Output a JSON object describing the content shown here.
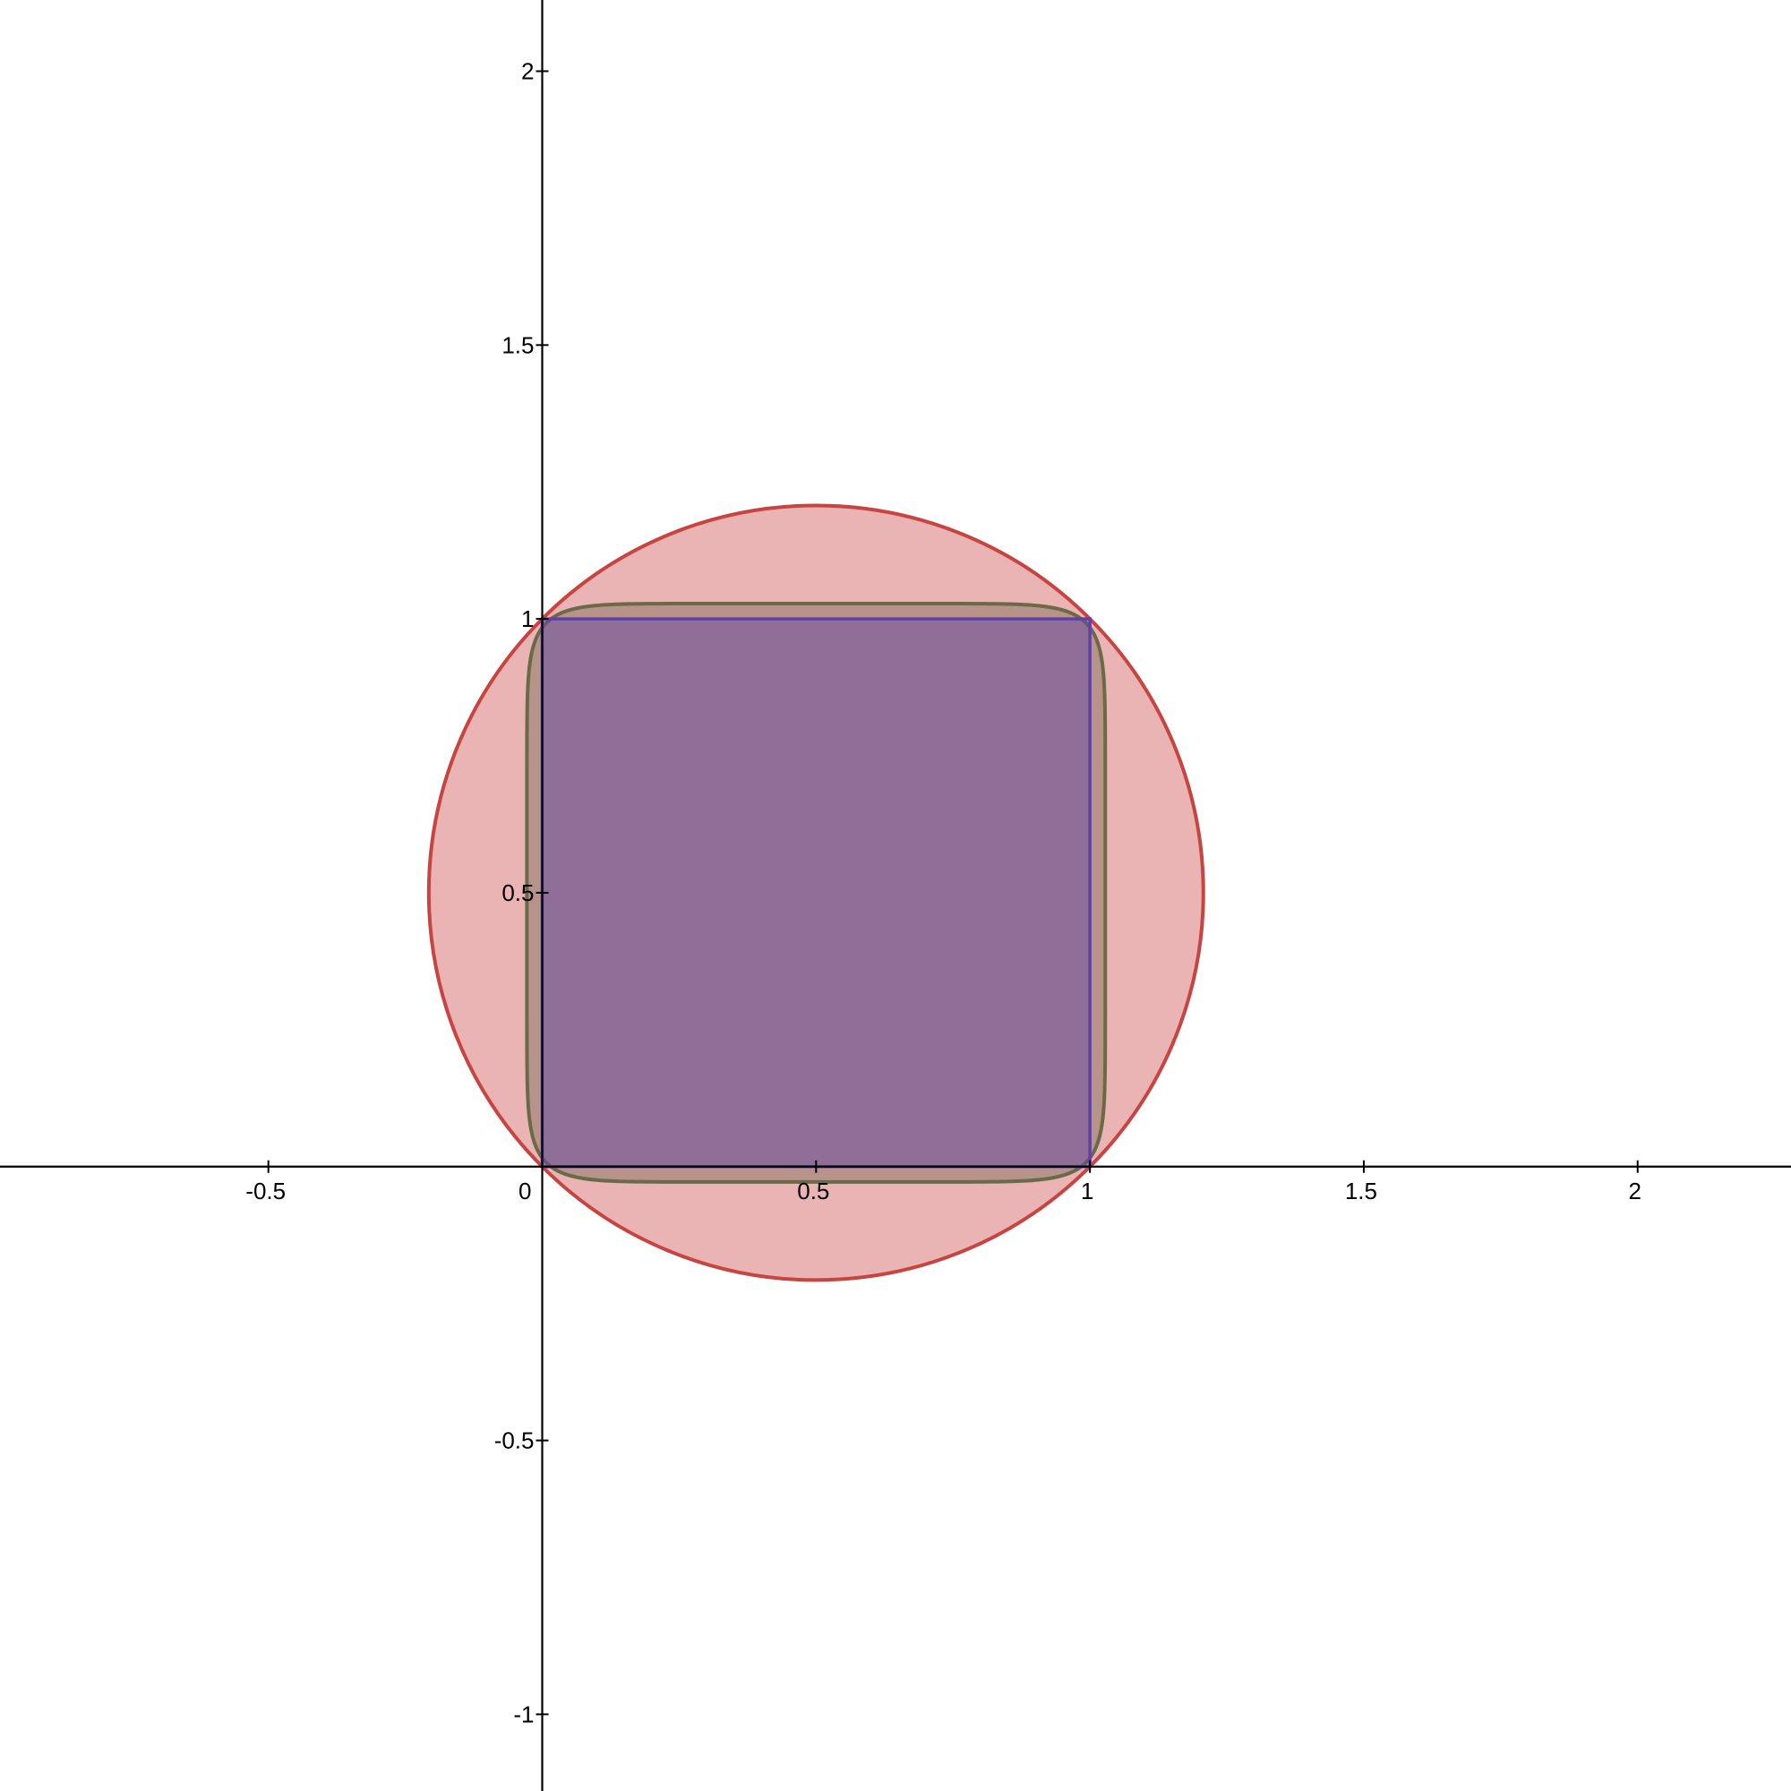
{
  "chart_data": {
    "type": "scatter",
    "xlim": [
      -0.99,
      2.28
    ],
    "ylim": [
      -1.14,
      2.13
    ],
    "x_ticks": [
      {
        "value": -0.5,
        "label": "-0.5"
      },
      {
        "value": 0.5,
        "label": "0.5"
      },
      {
        "value": 1,
        "label": "1"
      },
      {
        "value": 1.5,
        "label": "1.5"
      },
      {
        "value": 2,
        "label": "2"
      }
    ],
    "y_ticks": [
      {
        "value": -1,
        "label": "-1"
      },
      {
        "value": -0.5,
        "label": "-0.5"
      },
      {
        "value": 0.5,
        "label": "0.5"
      },
      {
        "value": 1,
        "label": "1"
      },
      {
        "value": 1.5,
        "label": "1.5"
      },
      {
        "value": 2,
        "label": "2"
      }
    ],
    "origin_label": "0",
    "grid": false,
    "shapes": [
      {
        "kind": "circle",
        "center": [
          0.5,
          0.5
        ],
        "radius": 0.7071,
        "stroke": "#c74440",
        "fill": "#c74440",
        "fill_opacity": 0.4
      },
      {
        "kind": "superellipse",
        "center": [
          0.5,
          0.5
        ],
        "half_width": 0.528,
        "half_height": 0.528,
        "exponent": 10,
        "stroke": "#6b6a48",
        "fill": "#7a6a58",
        "fill_opacity": 0.45
      },
      {
        "kind": "square",
        "corners": [
          [
            0,
            0
          ],
          [
            1,
            0
          ],
          [
            1,
            1
          ],
          [
            0,
            1
          ]
        ],
        "stroke": "#6042a6",
        "fill": "#6042a6",
        "fill_opacity": 0.45
      }
    ]
  }
}
